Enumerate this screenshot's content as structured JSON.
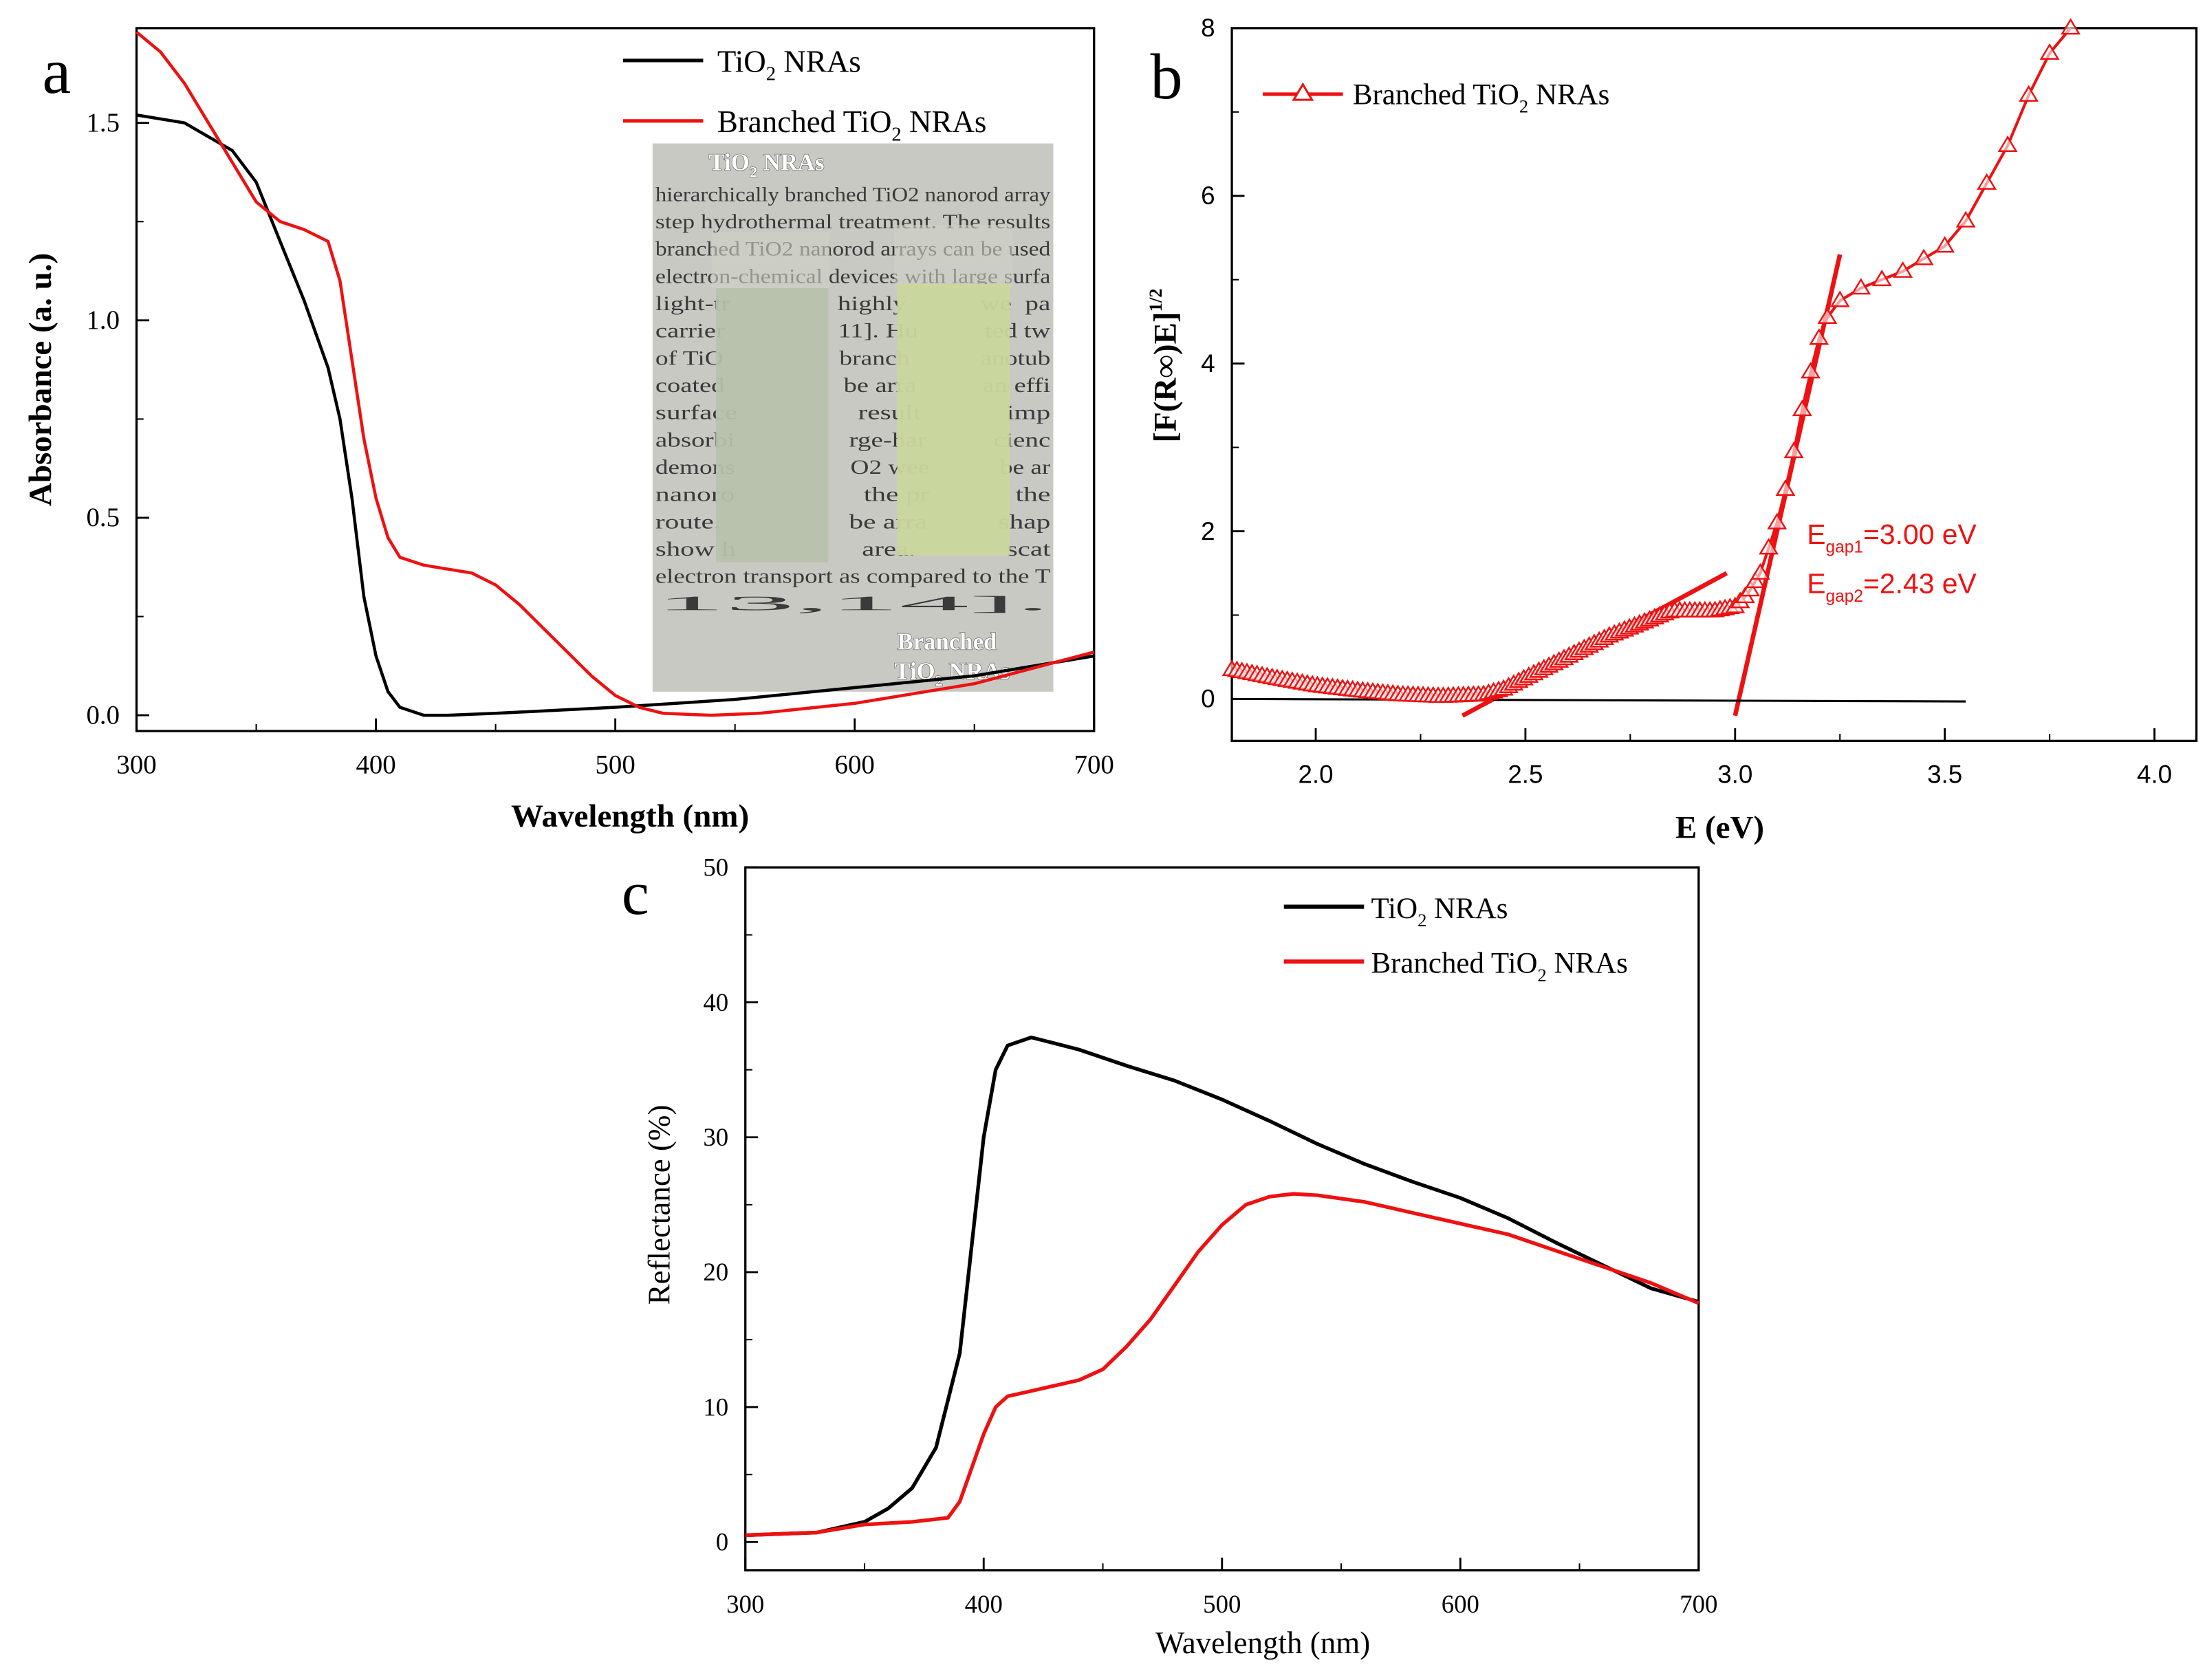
{
  "colors": {
    "tio2": "#000000",
    "branched": "#ee1111",
    "inset_bg": "#c9c9c4",
    "film_plain": "#b8c2ab",
    "film_branched": "#c9d79b"
  },
  "panels": {
    "a": "a",
    "b": "b",
    "c": "c"
  },
  "legend": {
    "tio2": {
      "pre": "TiO",
      "sub": "2",
      "post": " NRAs"
    },
    "branched": {
      "pre": "Branched TiO",
      "sub": "2",
      "post": " NRAs"
    }
  },
  "inset": {
    "label_plain": {
      "pre": "TiO",
      "sub": "2",
      "post": " NRAs"
    },
    "label_branched_1": "Branched",
    "label_branched_2": {
      "pre": "TiO",
      "sub": "2",
      "post": " NRAs"
    },
    "paper_lines": [
      "hierarchically branched TiO2 nanorod array",
      "step hydrothermal treatment. The results",
      "branched TiO2 nanorod arrays can be used",
      "electron-chemical devices with large surfa",
      "light-tr                highly           we  pa",
      "carrier                 11]. Hu          ted tw",
      "of TiO                  branch           anotub",
      "coated                  be arra          an effi",
      "surface                 result            imp",
      "absorbi                 rge-har          cienc",
      "demons                  O2 wee           be ar",
      "nanoro                  the pr            the",
      "route.                  be arra          shap",
      "show h                  area.             scat",
      "electron transport as compared to the T",
      "13,14]."
    ]
  },
  "chart_data": [
    {
      "type": "line",
      "panel": "a",
      "title": "",
      "xlabel": "Wavelength (nm)",
      "ylabel": "Absorbance (a. u.)",
      "xlim": [
        300,
        700
      ],
      "ylim": [
        -0.04,
        1.74
      ],
      "xticks": [
        "300",
        "400",
        "500",
        "600",
        "700"
      ],
      "xtick_values": [
        300,
        400,
        500,
        600,
        700
      ],
      "yticks": [
        "0.0",
        "0.5",
        "1.0",
        "1.5"
      ],
      "ytick_values": [
        0,
        0.5,
        1.0,
        1.5
      ],
      "legend_position": "top-right",
      "series": [
        {
          "name": "TiO2 NRAs",
          "color": "#000000",
          "x": [
            300,
            320,
            340,
            350,
            360,
            370,
            380,
            385,
            390,
            395,
            400,
            405,
            410,
            420,
            430,
            450,
            500,
            550,
            600,
            650,
            700
          ],
          "y": [
            1.52,
            1.5,
            1.43,
            1.35,
            1.2,
            1.05,
            0.88,
            0.75,
            0.55,
            0.3,
            0.15,
            0.06,
            0.02,
            0.0,
            0.0,
            0.005,
            0.02,
            0.04,
            0.07,
            0.1,
            0.15
          ]
        },
        {
          "name": "Branched TiO2 NRAs",
          "color": "#ee1111",
          "x": [
            300,
            310,
            320,
            330,
            340,
            350,
            360,
            370,
            380,
            385,
            390,
            395,
            400,
            405,
            410,
            420,
            430,
            440,
            450,
            460,
            470,
            480,
            490,
            500,
            510,
            520,
            540,
            560,
            600,
            650,
            700
          ],
          "y": [
            1.73,
            1.68,
            1.6,
            1.5,
            1.4,
            1.3,
            1.25,
            1.23,
            1.2,
            1.1,
            0.9,
            0.7,
            0.55,
            0.45,
            0.4,
            0.38,
            0.37,
            0.36,
            0.33,
            0.28,
            0.22,
            0.16,
            0.1,
            0.05,
            0.02,
            0.005,
            0.0,
            0.005,
            0.03,
            0.08,
            0.16
          ]
        }
      ]
    },
    {
      "type": "scatter",
      "panel": "b",
      "title": "",
      "xlabel": "E (eV)",
      "ylabel": {
        "main": "[F(R∞)E]",
        "sup": "1/2"
      },
      "xlim": [
        1.8,
        4.1
      ],
      "ylim": [
        -0.5,
        8
      ],
      "xticks": [
        "2.0",
        "2.5",
        "3.0",
        "3.5",
        "4.0"
      ],
      "xtick_values": [
        2.0,
        2.5,
        3.0,
        3.5,
        4.0
      ],
      "yticks": [
        "0",
        "2",
        "4",
        "6",
        "8"
      ],
      "ytick_values": [
        0,
        2,
        4,
        6,
        8
      ],
      "legend_position": "top-left",
      "series": [
        {
          "name": "Branched TiO2 NRAs",
          "color": "#ee1111",
          "marker": "open-triangle",
          "x": [
            1.8,
            1.9,
            2.0,
            2.1,
            2.2,
            2.3,
            2.4,
            2.45,
            2.5,
            2.6,
            2.7,
            2.8,
            2.85,
            2.9,
            2.95,
            3.0,
            3.03,
            3.06,
            3.08,
            3.1,
            3.12,
            3.14,
            3.16,
            3.18,
            3.2,
            3.22,
            3.25,
            3.3,
            3.35,
            3.4,
            3.45,
            3.5,
            3.55,
            3.6,
            3.65,
            3.7,
            3.75,
            3.8
          ],
          "y": [
            0.35,
            0.25,
            0.16,
            0.1,
            0.05,
            0.03,
            0.05,
            0.12,
            0.25,
            0.5,
            0.75,
            0.95,
            1.05,
            1.05,
            1.05,
            1.1,
            1.25,
            1.5,
            1.8,
            2.1,
            2.5,
            2.95,
            3.45,
            3.9,
            4.3,
            4.55,
            4.75,
            4.9,
            5.0,
            5.1,
            5.25,
            5.4,
            5.7,
            6.15,
            6.6,
            7.2,
            7.7,
            8.0
          ]
        }
      ],
      "fit_lines": [
        {
          "name": "tangent-gap2",
          "color": "#ee1111",
          "x": [
            2.35,
            2.98
          ],
          "y": [
            -0.2,
            1.5
          ]
        },
        {
          "name": "tangent-gap1",
          "color": "#ee1111",
          "x": [
            3.0,
            3.25
          ],
          "y": [
            -0.2,
            5.3
          ]
        },
        {
          "name": "baseline",
          "color": "#000000",
          "x": [
            1.8,
            3.55
          ],
          "y": [
            0.0,
            -0.03
          ]
        }
      ],
      "annotations": [
        {
          "pre": "E",
          "sub": "gap1",
          "post": "=3.00 eV"
        },
        {
          "pre": "E",
          "sub": "gap2",
          "post": "=2.43 eV"
        }
      ]
    },
    {
      "type": "line",
      "panel": "c",
      "title": "",
      "xlabel": "Wavelength (nm)",
      "ylabel": "Reflectance (%)",
      "xlim": [
        300,
        700
      ],
      "ylim": [
        -2.1,
        50
      ],
      "xticks": [
        "300",
        "400",
        "500",
        "600",
        "700"
      ],
      "xtick_values": [
        300,
        400,
        500,
        600,
        700
      ],
      "yticks": [
        "0",
        "10",
        "20",
        "30",
        "40",
        "50"
      ],
      "ytick_values": [
        0,
        10,
        20,
        30,
        40,
        50
      ],
      "legend_position": "top-right",
      "series": [
        {
          "name": "TiO2 NRAs",
          "color": "#000000",
          "x": [
            300,
            330,
            350,
            360,
            370,
            380,
            390,
            395,
            400,
            405,
            410,
            420,
            440,
            460,
            480,
            500,
            520,
            540,
            560,
            580,
            600,
            620,
            640,
            660,
            680,
            700
          ],
          "y": [
            0.5,
            0.7,
            1.5,
            2.5,
            4,
            7,
            14,
            22,
            30,
            35,
            36.8,
            37.4,
            36.5,
            35.3,
            34.2,
            32.8,
            31.2,
            29.5,
            28,
            26.7,
            25.5,
            24,
            22.2,
            20.5,
            18.8,
            17.8
          ]
        },
        {
          "name": "Branched TiO2 NRAs",
          "color": "#ee1111",
          "x": [
            300,
            330,
            350,
            370,
            385,
            390,
            395,
            400,
            405,
            410,
            420,
            440,
            450,
            460,
            470,
            480,
            490,
            500,
            510,
            520,
            530,
            540,
            560,
            580,
            600,
            620,
            640,
            660,
            680,
            700
          ],
          "y": [
            0.5,
            0.7,
            1.3,
            1.5,
            1.8,
            3,
            5.5,
            8,
            10,
            10.8,
            11.2,
            12,
            12.8,
            14.5,
            16.5,
            19,
            21.5,
            23.5,
            25,
            25.6,
            25.8,
            25.7,
            25.2,
            24.4,
            23.6,
            22.8,
            21.6,
            20.4,
            19.2,
            17.7
          ]
        }
      ]
    }
  ]
}
